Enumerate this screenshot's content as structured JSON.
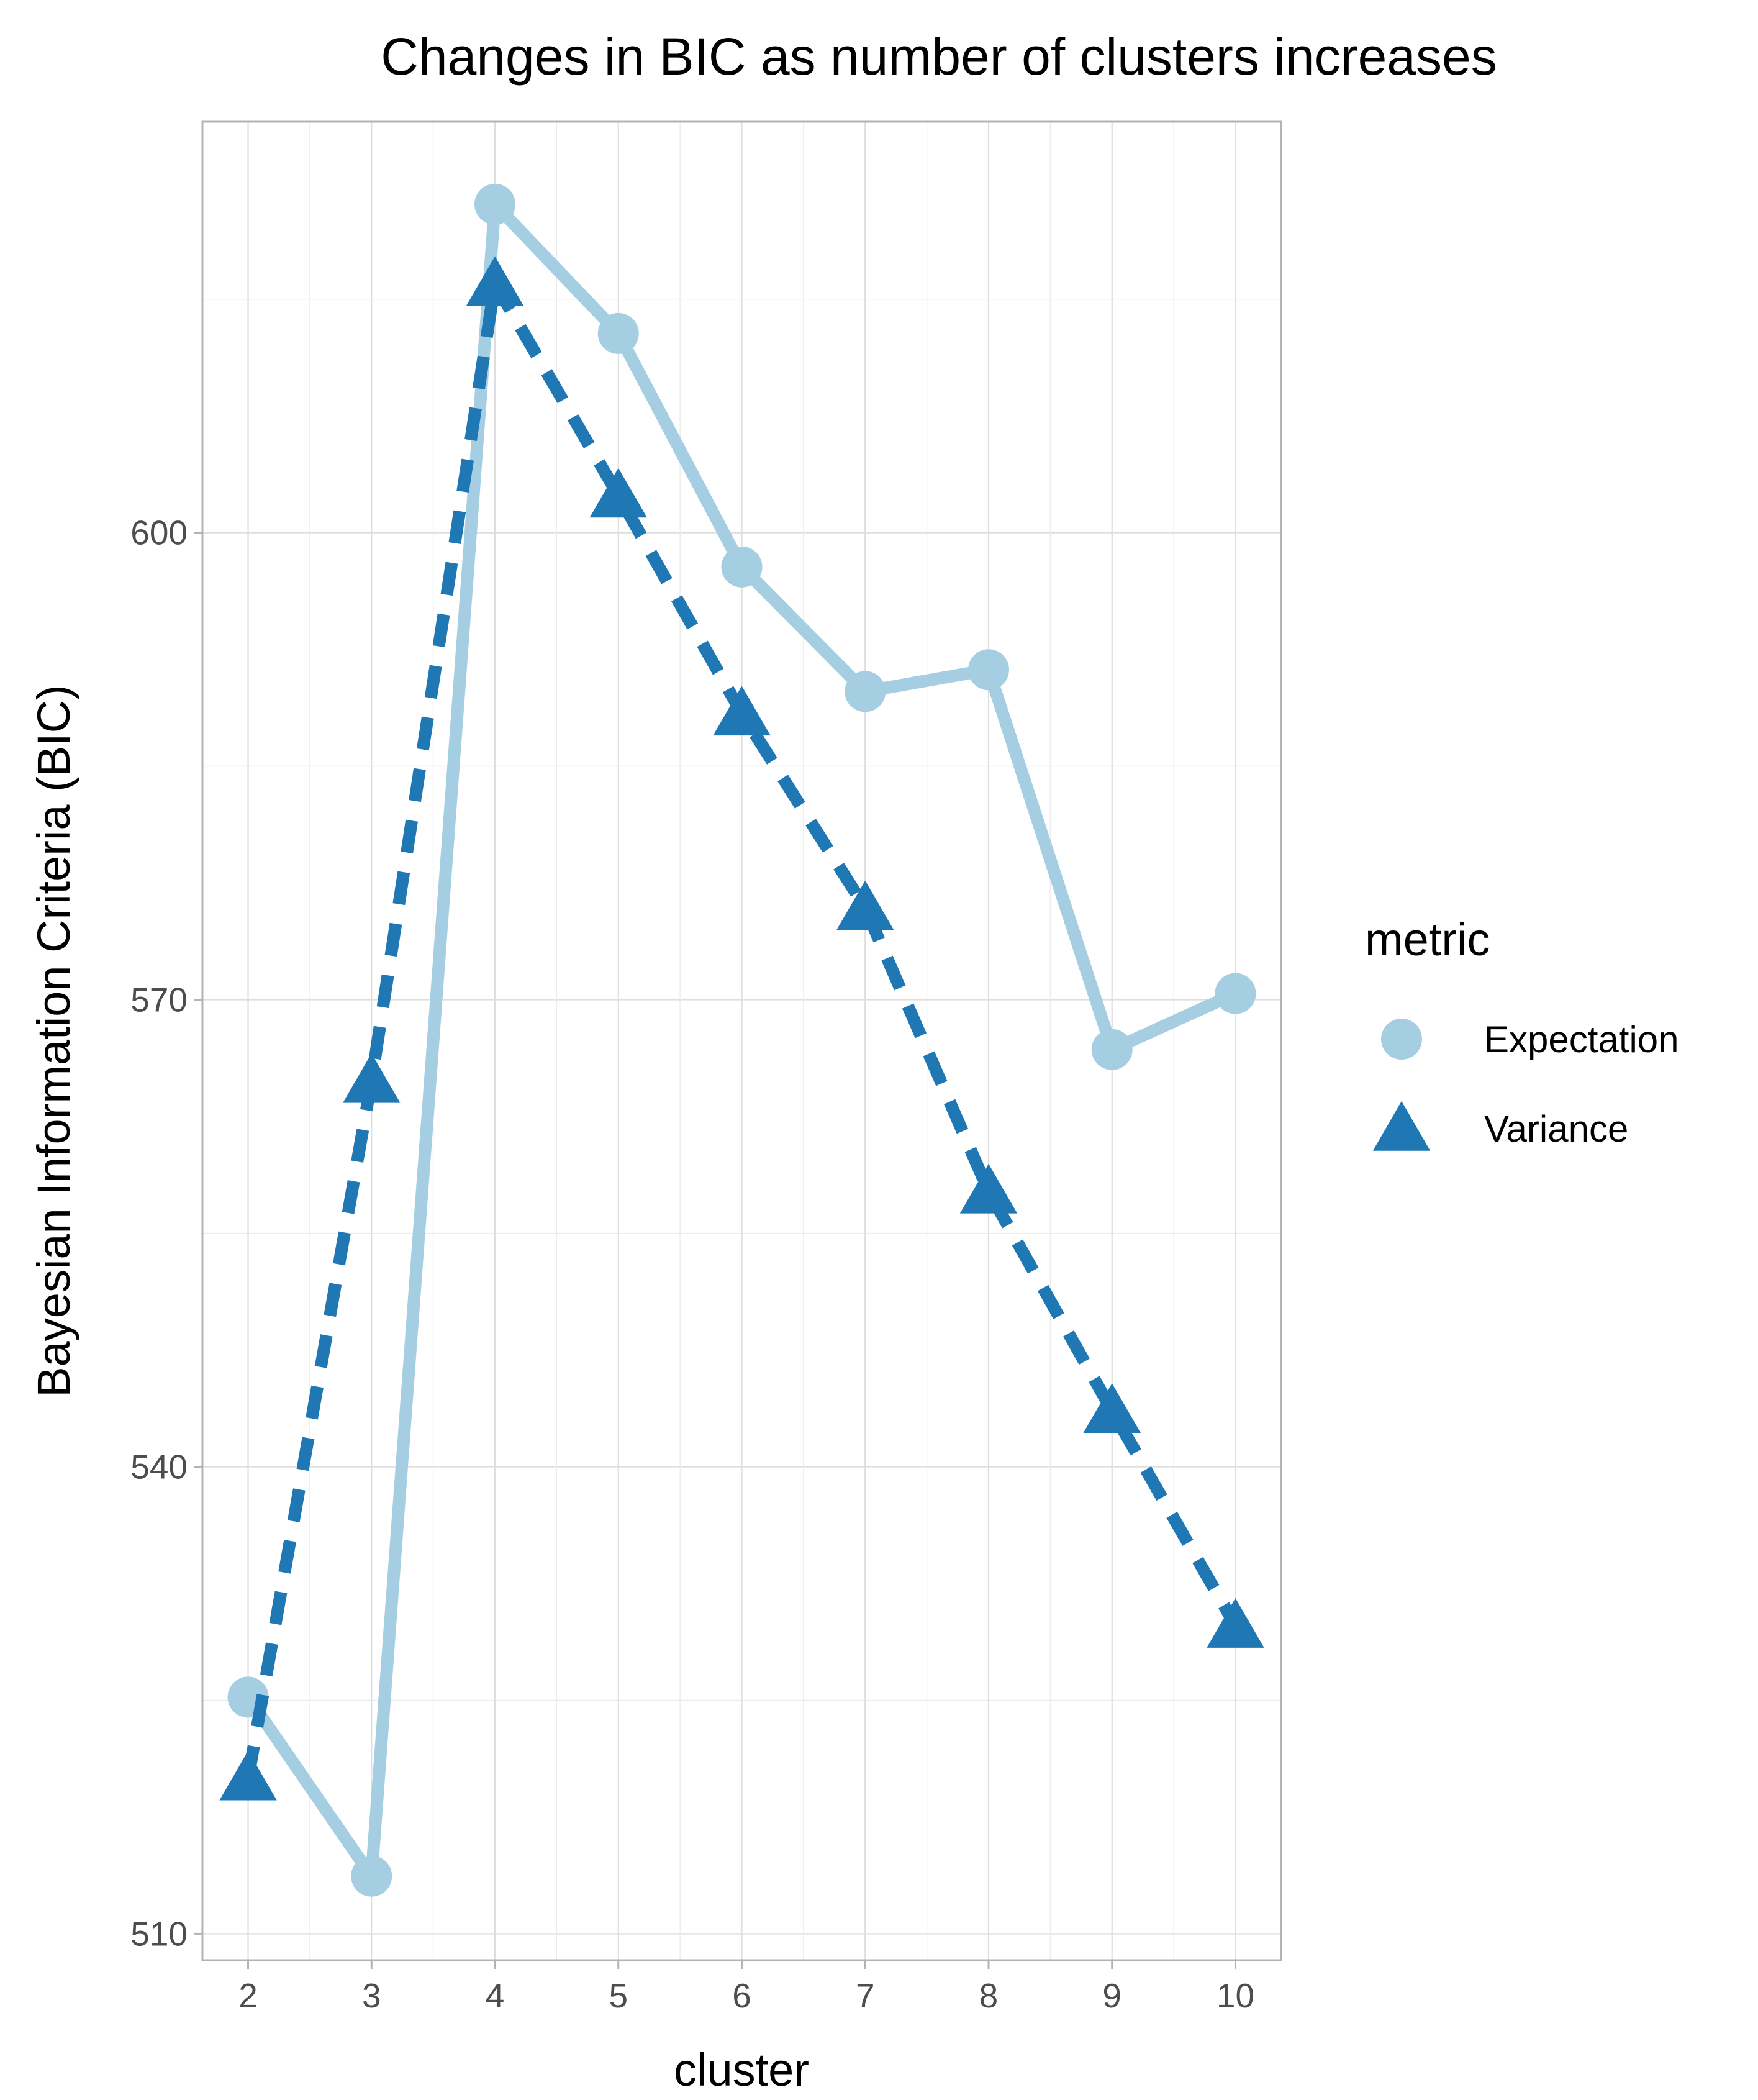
{
  "chart_data": {
    "type": "line",
    "title": "Changes in BIC as number of clusters increases",
    "xlabel": "cluster",
    "ylabel": "Bayesian Information Criteria (BIC)",
    "x": [
      2,
      3,
      4,
      5,
      6,
      7,
      8,
      9,
      10
    ],
    "x_ticks": [
      "2",
      "3",
      "4",
      "5",
      "6",
      "7",
      "8",
      "9",
      "10"
    ],
    "y_ticks": [
      "510",
      "540",
      "570",
      "600"
    ],
    "xlim": [
      1.63,
      10.37
    ],
    "ylim": [
      508.3,
      626.4
    ],
    "grid": true,
    "legend": {
      "title": "metric",
      "position": "right"
    },
    "series": [
      {
        "name": "Expectation",
        "values": [
          525.2,
          513.7,
          621.1,
          612.8,
          597.8,
          589.8,
          591.2,
          566.8,
          570.4
        ],
        "color": "#a6cee3",
        "line_style": "solid",
        "marker": "circle"
      },
      {
        "name": "Variance",
        "values": [
          520.0,
          564.8,
          616.0,
          602.4,
          588.4,
          575.9,
          557.7,
          543.6,
          529.8
        ],
        "color": "#1f78b4",
        "line_style": "dashed",
        "marker": "triangle"
      }
    ]
  }
}
